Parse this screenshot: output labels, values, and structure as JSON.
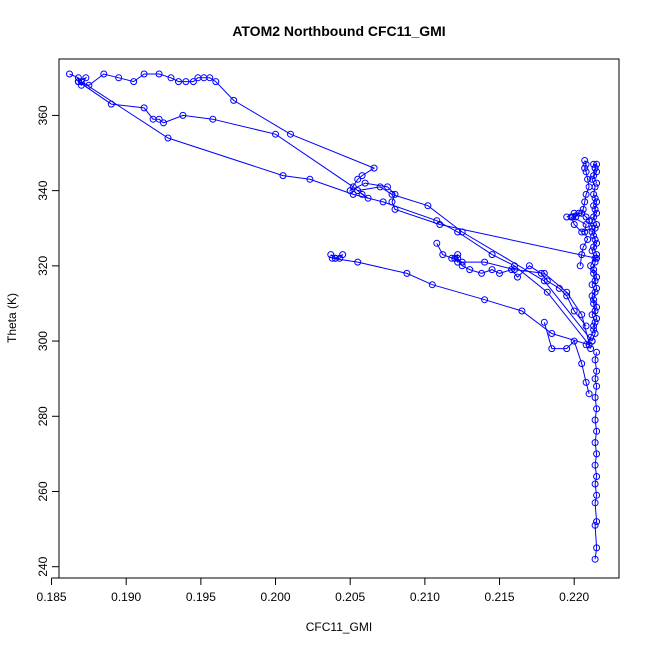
{
  "chart_data": {
    "type": "line",
    "title": "ATOM2 Northbound CFC11_GMI",
    "xlabel": "CFC11_GMI",
    "ylabel": "Theta (K)",
    "xlim": [
      0.1855,
      0.223
    ],
    "ylim": [
      237,
      375
    ],
    "xticks": [
      0.185,
      0.19,
      0.195,
      0.2,
      0.205,
      0.21,
      0.215,
      0.22
    ],
    "xtick_labels": [
      "0.185",
      "0.190",
      "0.195",
      "0.200",
      "0.205",
      "0.210",
      "0.215",
      "0.220"
    ],
    "yticks": [
      240,
      260,
      280,
      300,
      320,
      340,
      360
    ],
    "ytick_labels": [
      "240",
      "260",
      "280",
      "300",
      "320",
      "340",
      "360"
    ],
    "grid": false,
    "series_color": "#0000ff",
    "marker": "open-circle",
    "series": [
      {
        "x": [
          0.2214,
          0.2215,
          0.2214,
          0.2215,
          0.2214,
          0.2215,
          0.2214,
          0.2215,
          0.2214,
          0.2215,
          0.2214,
          0.2215,
          0.2214,
          0.2215,
          0.2214,
          0.2215,
          0.2214,
          0.2215,
          0.2214,
          0.2215
        ],
        "y": [
          242,
          245,
          251,
          252,
          257,
          259,
          262,
          264,
          267,
          270,
          273,
          276,
          279,
          282,
          285,
          288,
          290,
          292,
          295,
          297
        ]
      },
      {
        "x": [
          0.2208,
          0.2211,
          0.2213,
          0.2214,
          0.2212,
          0.2215,
          0.2213,
          0.2214,
          0.2212,
          0.2215,
          0.2213,
          0.2214,
          0.2215,
          0.2213,
          0.2214,
          0.2212,
          0.2215,
          0.2213,
          0.2214,
          0.2215,
          0.2213,
          0.2214,
          0.2212,
          0.2215,
          0.2214,
          0.2213,
          0.2215,
          0.2214,
          0.2213,
          0.2215
        ],
        "y": [
          299,
          301,
          303,
          305,
          307,
          309,
          311,
          313,
          315,
          317,
          319,
          321,
          323,
          325,
          327,
          329,
          331,
          333,
          335,
          337,
          339,
          341,
          343,
          345,
          346,
          347,
          347,
          346,
          344,
          342
        ]
      },
      {
        "x": [
          0.2212,
          0.2214,
          0.2213,
          0.2215,
          0.2214,
          0.2213,
          0.2212,
          0.2215,
          0.2214,
          0.2213,
          0.2211,
          0.2214,
          0.2212,
          0.2215,
          0.2213,
          0.2214,
          0.2212,
          0.2215,
          0.2213,
          0.2214
        ],
        "y": [
          300,
          302,
          304,
          306,
          308,
          310,
          312,
          314,
          316,
          318,
          320,
          322,
          324,
          326,
          328,
          330,
          332,
          334,
          336,
          338
        ]
      },
      {
        "x": [
          0.2207,
          0.2208,
          0.2207,
          0.2208,
          0.2209,
          0.221,
          0.2208,
          0.2207,
          0.2206,
          0.2205,
          0.2203,
          0.2201,
          0.2199,
          0.2208,
          0.2207,
          0.2209,
          0.2206,
          0.2205,
          0.2204
        ],
        "y": [
          348,
          347,
          346,
          345,
          343,
          341,
          339,
          337,
          335,
          334,
          334,
          333,
          333,
          331,
          329,
          327,
          325,
          323,
          320
        ]
      },
      {
        "x": [
          0.1862,
          0.1868,
          0.1868,
          0.1873,
          0.187,
          0.1868,
          0.1875,
          0.1885,
          0.1895,
          0.1905,
          0.1912,
          0.1922,
          0.193,
          0.1935,
          0.194,
          0.1945,
          0.1948,
          0.1952,
          0.1956,
          0.196,
          0.1972,
          0.201,
          0.2066,
          0.2058,
          0.2055,
          0.205,
          0.206,
          0.2075,
          0.208,
          0.2078,
          0.208,
          0.211,
          0.2215
        ],
        "y": [
          371,
          370,
          369,
          370,
          368,
          369,
          368,
          371,
          370,
          369,
          371,
          371,
          370,
          369,
          369,
          369,
          370,
          370,
          370,
          369,
          364,
          355,
          346,
          344,
          343,
          340,
          342,
          341,
          339,
          337,
          335,
          331,
          322
        ]
      },
      {
        "x": [
          0.1868,
          0.189,
          0.1912,
          0.1918,
          0.1922,
          0.1925,
          0.1938,
          0.1958,
          0.2,
          0.2052,
          0.2058,
          0.2062,
          0.2055,
          0.207,
          0.2078,
          0.2102,
          0.2125,
          0.218,
          0.2212
        ],
        "y": [
          369,
          363,
          362,
          359,
          359,
          358,
          360,
          359,
          355,
          341,
          339,
          338,
          340,
          341,
          339,
          336,
          329,
          316,
          300
        ]
      },
      {
        "x": [
          0.187,
          0.1928,
          0.2005,
          0.2023,
          0.2052,
          0.2072,
          0.2108,
          0.2122,
          0.2145,
          0.216,
          0.2182,
          0.221
        ],
        "y": [
          369,
          354,
          344,
          343,
          339,
          337,
          332,
          329,
          323,
          320,
          313,
          299
        ]
      },
      {
        "x": [
          0.2037,
          0.204,
          0.2043,
          0.2045,
          0.204,
          0.2038,
          0.2055,
          0.2088,
          0.2105,
          0.214,
          0.2165,
          0.2185,
          0.221
        ],
        "y": [
          323,
          322,
          322,
          323,
          322,
          322,
          321,
          318,
          315,
          311,
          308,
          302,
          299
        ]
      },
      {
        "x": [
          0.2118,
          0.2122,
          0.2122,
          0.212,
          0.2122,
          0.2125,
          0.213,
          0.2138,
          0.2145,
          0.215,
          0.2158,
          0.2162,
          0.217,
          0.2178,
          0.2182,
          0.219,
          0.2195,
          0.22,
          0.2208
        ],
        "y": [
          322,
          323,
          321,
          322,
          322,
          320,
          319,
          318,
          319,
          318,
          319,
          317,
          320,
          318,
          316,
          314,
          312,
          308,
          304
        ]
      },
      {
        "x": [
          0.2108,
          0.2112,
          0.2125,
          0.214,
          0.216,
          0.218,
          0.2195,
          0.2205,
          0.2211
        ],
        "y": [
          326,
          323,
          321,
          321,
          319,
          318,
          313,
          307,
          298
        ]
      },
      {
        "x": [
          0.218,
          0.2185,
          0.2195,
          0.22,
          0.2205,
          0.2208,
          0.221
        ],
        "y": [
          305,
          298,
          298,
          300,
          294,
          289,
          286
        ]
      },
      {
        "x": [
          0.2195,
          0.22,
          0.2205,
          0.2208,
          0.221,
          0.2212,
          0.2205,
          0.22,
          0.2198
        ],
        "y": [
          333,
          334,
          334,
          333,
          332,
          330,
          329,
          331,
          333
        ]
      }
    ]
  }
}
